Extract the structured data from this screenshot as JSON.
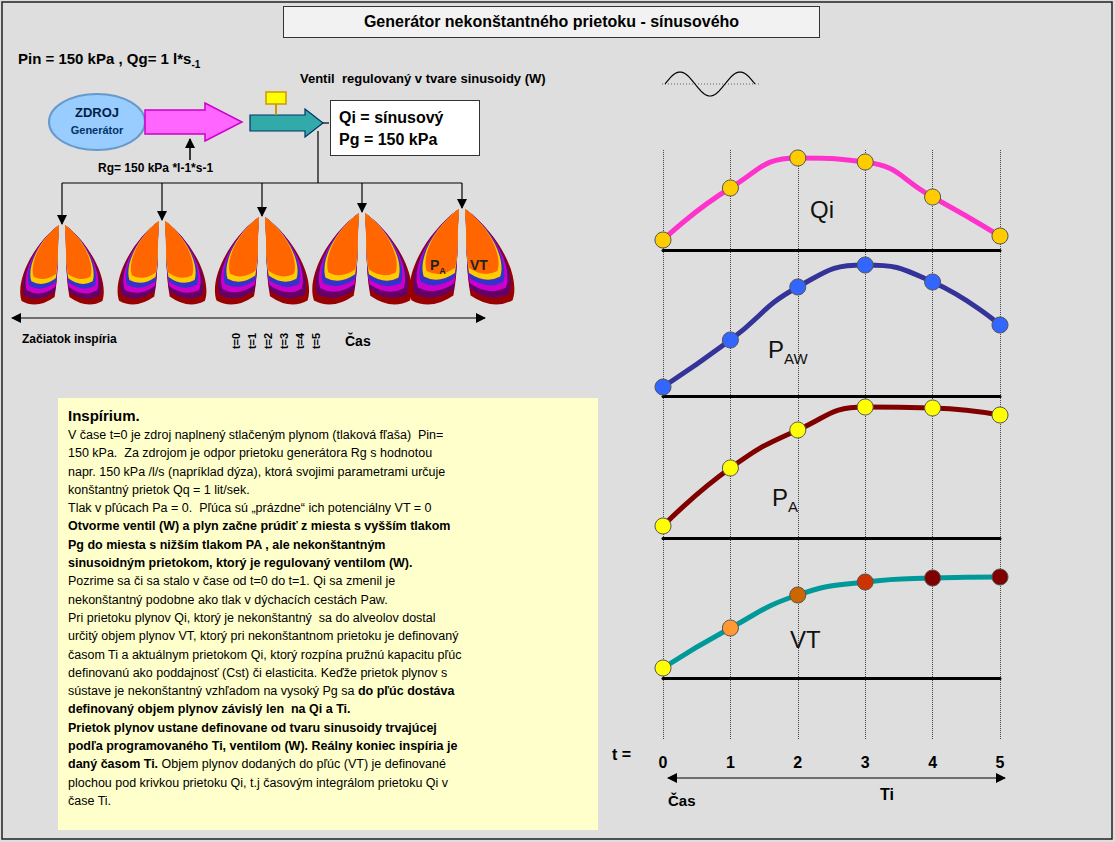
{
  "header": {
    "title": "Generátor nekonštantného prietoku - sínusového"
  },
  "source_params": {
    "text": "Pin = 150 kPa , Qg= 1 l*s",
    "sub": "-1"
  },
  "valve": {
    "label": "Ventil  regulovaný v tvare sinusoidy (W)"
  },
  "generator": {
    "line1": "ZDROJ",
    "line2": "Generátor"
  },
  "resistance": "Rg= 150 kPa *l-1*s-1",
  "output_box": [
    "Qi = sínusový",
    "Pg = 150 kPa"
  ],
  "lungs": {
    "count": 5,
    "labels": [
      {
        "text": "PA",
        "sub": "A"
      },
      {
        "text": "VT",
        "sub": ""
      }
    ]
  },
  "timeline": {
    "start_label": "Začiatok inspíria",
    "steps": [
      "t=0",
      "t=1",
      "t=2",
      "t=3",
      "t=4",
      "t=5"
    ],
    "end_label": "Čas"
  },
  "text_box": {
    "heading": "Inspírium.",
    "lines": [
      [
        {
          "text": "V čase t=0 je zdroj naplnený stlačeným plynom (tlaková fľaša)  Pin=",
          "bold": false
        }
      ],
      [
        {
          "text": "150 kPa.  Za zdrojom je odpor prietoku generátora Rg s hodnotou",
          "bold": false
        }
      ],
      [
        {
          "text": "napr. 150 kPa /l/s (napríklad dýza), ktorá svojimi parametrami určuje",
          "bold": false
        }
      ],
      [
        {
          "text": "konštantný prietok Qq = 1 lit/sek.",
          "bold": false
        }
      ],
      [
        {
          "text": "Tlak v pľúcach Pa = 0.  Pľúca sú „prázdne“ ich potenciálny VT = 0",
          "bold": false
        }
      ],
      [
        {
          "text": "Otvorme ventil (W) a plyn začne prúdiť z miesta s vyšším tlakom",
          "bold": true
        }
      ],
      [
        {
          "text": "Pg do miesta s nižším tlakom PA , ale nekonštantným",
          "bold": true
        }
      ],
      [
        {
          "text": "sinusoidným prietokom, ktorý je regulovaný ventilom (W).",
          "bold": true
        }
      ],
      [
        {
          "text": "Pozrime sa či sa stalo v čase od t=0 do t=1. Qi sa zmenil je",
          "bold": false
        }
      ],
      [
        {
          "text": "nekonštantný podobne ako tlak v dýchacích cestách Paw.",
          "bold": false
        }
      ],
      [
        {
          "text": "Pri prietoku plynov Qi, ktorý je nekonštantný  sa do alveolov dostal",
          "bold": false
        }
      ],
      [
        {
          "text": "určitý objem plynov VT, ktorý pri nekonštantnom prietoku je definovaný",
          "bold": false
        }
      ],
      [
        {
          "text": "časom Ti a aktuálnym prietokom Qi, ktorý rozpína pružnú kapacitu pľúc",
          "bold": false
        }
      ],
      [
        {
          "text": "definovanú ako poddajnosť (Cst) či elasticita. Keďže prietok plynov s",
          "bold": false
        }
      ],
      [
        {
          "text": "sústave je nekonštantný vzhľadom na vysoký Pg sa ",
          "bold": false
        },
        {
          "text": "do pľúc dostáva",
          "bold": true
        }
      ],
      [
        {
          "text": "definovaný objem plynov závislý len  na Qi a Ti.",
          "bold": true
        }
      ],
      [
        {
          "text": "Prietok plynov ustane definovane od tvaru sinusoidy trvajúcej",
          "bold": true
        }
      ],
      [
        {
          "text": "podľa programovaného Ti, ventilom (W). Reálny koniec inspíria je",
          "bold": true
        }
      ],
      [
        {
          "text": "daný časom Ti.",
          "bold": true
        },
        {
          "text": " Objem plynov dodaných do pľúc (VT) je definované",
          "bold": false
        }
      ],
      [
        {
          "text": "plochou pod krivkou prietoku Qi, t.j časovým integrálom prietoku Qi v",
          "bold": false
        }
      ],
      [
        {
          "text": "čase Ti.",
          "bold": false
        }
      ]
    ]
  },
  "chart_data": {
    "type": "line",
    "x": [
      0,
      1,
      2,
      3,
      4,
      5
    ],
    "xlim": [
      0,
      5
    ],
    "xticks": [
      0,
      1,
      2,
      3,
      4,
      5
    ],
    "x_label": "t =",
    "x_title": "Čas",
    "span_label": "Ti",
    "ylim": [
      0,
      140
    ],
    "tick_labels": "x",
    "grid": true,
    "marker": "circle",
    "line_style": "solid",
    "series": [
      {
        "name": "Qi",
        "subscript": "",
        "color": "#ff33cc",
        "colors": [
          "#ffcc00",
          "#ffcc00",
          "#ffcc00",
          "#ffcc00",
          "#ffcc00",
          "#ffcc00"
        ],
        "values": [
          10,
          62,
          92,
          88,
          53,
          14
        ]
      },
      {
        "name": "PAW",
        "subscript": "AW",
        "color": "#333399",
        "colors": [
          "#3366ff",
          "#3366ff",
          "#3366ff",
          "#3366ff",
          "#3366ff",
          "#3366ff"
        ],
        "values": [
          9,
          56,
          109,
          131,
          114,
          71
        ]
      },
      {
        "name": "PA",
        "subscript": "A",
        "color": "#800000",
        "colors": [
          "#ffff00",
          "#ffff00",
          "#ffff00",
          "#ffff00",
          "#ffff00",
          "#ffff00"
        ],
        "values": [
          12,
          70,
          108,
          131,
          130,
          123
        ]
      },
      {
        "name": "VT",
        "subscript": "",
        "color": "#009999",
        "colors": [
          "#ffff00",
          "#ff9933",
          "#cc6600",
          "#cc3300",
          "#800000",
          "#800000"
        ],
        "values": [
          10,
          50,
          83,
          96,
          100,
          101
        ]
      }
    ]
  }
}
